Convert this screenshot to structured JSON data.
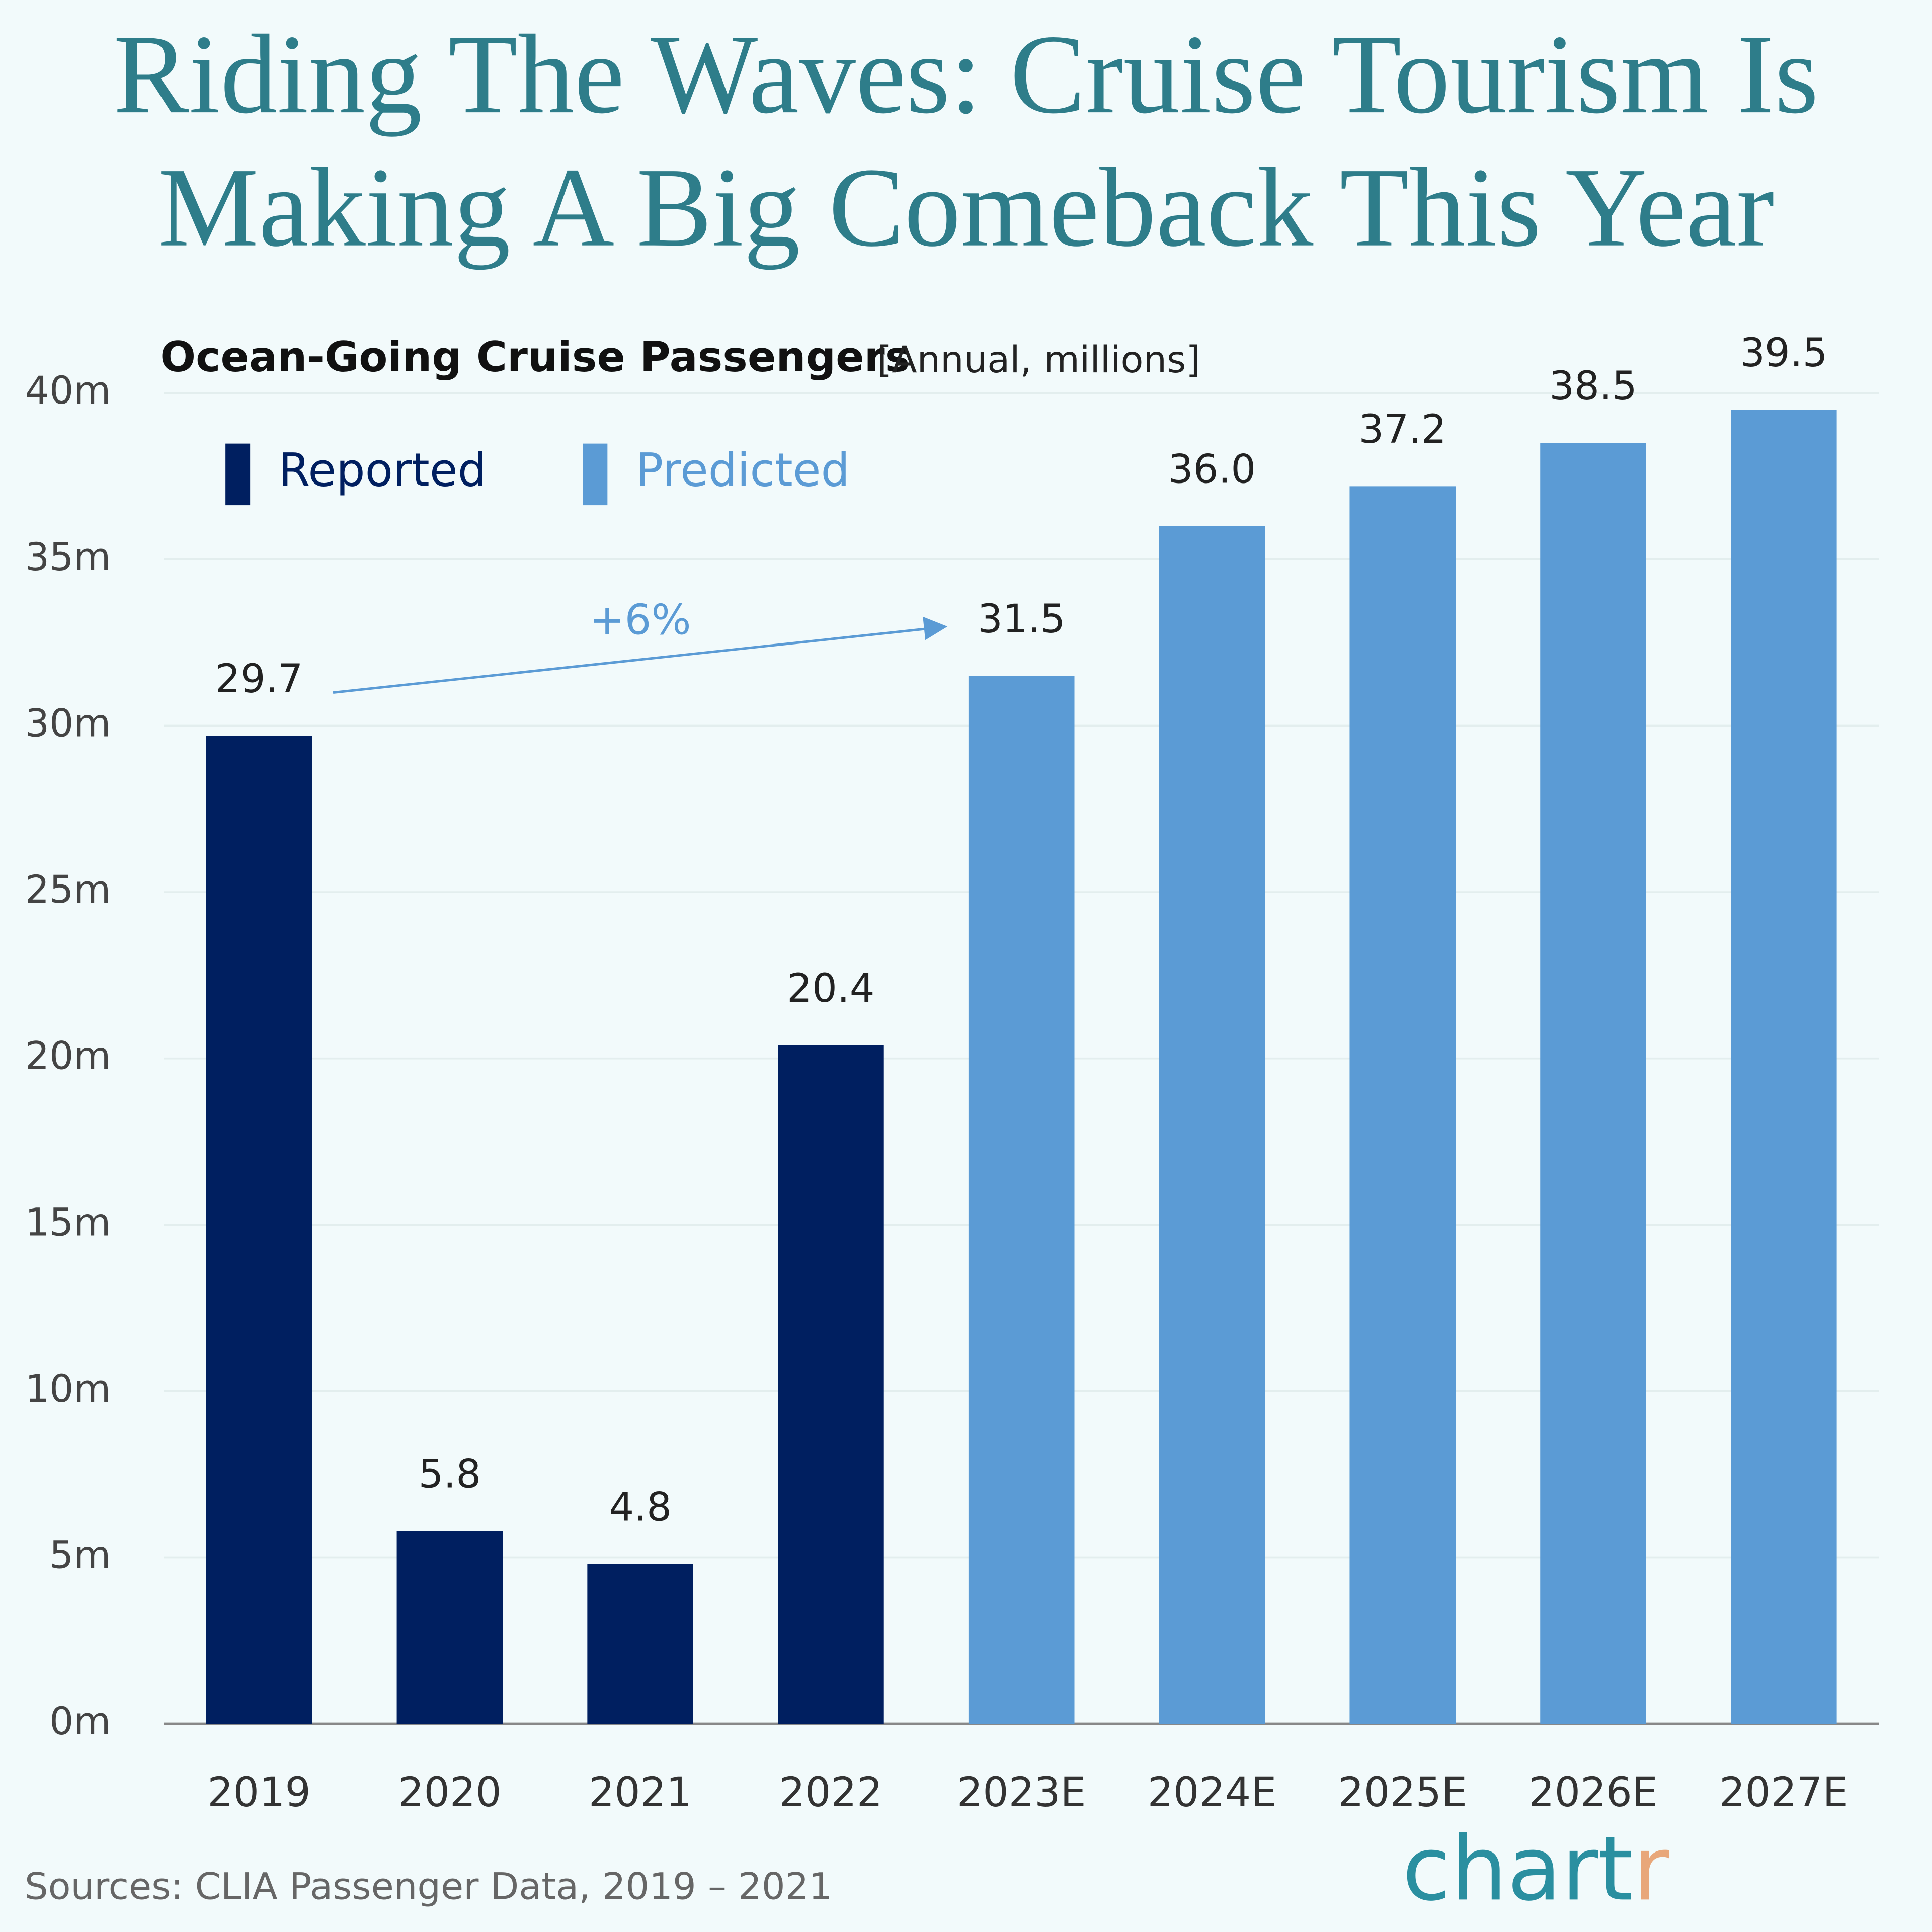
{
  "chart_data": {
    "type": "bar",
    "title": [
      "Riding The Waves: Cruise Tourism Is",
      "Making A Big Comeback This Year"
    ],
    "subtitle": "Ocean-Going Cruise Passengers",
    "unit": "[Annual, millions]",
    "categories": [
      "2019",
      "2020",
      "2021",
      "2022",
      "2023E",
      "2024E",
      "2025E",
      "2026E",
      "2027E"
    ],
    "series": [
      {
        "name": "Reported",
        "color": "#001f60",
        "values": [
          29.7,
          5.8,
          4.8,
          20.4,
          null,
          null,
          null,
          null,
          null
        ],
        "value_labels": [
          "29.7",
          "5.8",
          "4.8",
          "20.4",
          null,
          null,
          null,
          null,
          null
        ]
      },
      {
        "name": "Predicted",
        "color": "#5b9bd5",
        "values": [
          null,
          null,
          null,
          null,
          31.5,
          36,
          37.2,
          38.5,
          39.5
        ],
        "value_labels": [
          null,
          null,
          null,
          null,
          "31.5",
          "36.0",
          "37.2",
          "38.5",
          "39.5"
        ]
      }
    ],
    "ylim": [
      0,
      40
    ],
    "yticks": [
      {
        "value": 0,
        "label": "0m"
      },
      {
        "value": 5,
        "label": "5m"
      },
      {
        "value": 10,
        "label": "10m"
      },
      {
        "value": 15,
        "label": "15m"
      },
      {
        "value": 20,
        "label": "20m"
      },
      {
        "value": 25,
        "label": "25m"
      },
      {
        "value": 30,
        "label": "30m"
      },
      {
        "value": 35,
        "label": "35m"
      },
      {
        "value": 40,
        "label": "40m"
      }
    ],
    "grid": true,
    "annotation": "+6%",
    "source": "Sources: CLIA Passenger Data, 2019 – 2021",
    "brand": [
      "chart",
      "r"
    ]
  }
}
